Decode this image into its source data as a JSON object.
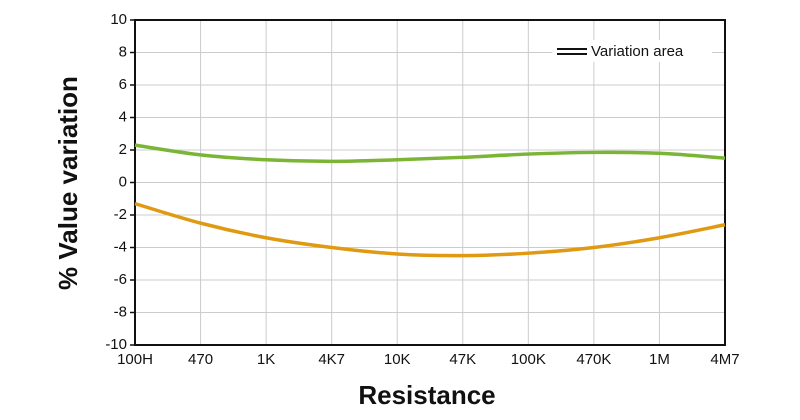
{
  "chart_data": {
    "type": "line",
    "x_label": "Resistance",
    "y_label": "% Value variation",
    "legend": "Variation area",
    "categories": [
      "100H",
      "470",
      "1K",
      "4K7",
      "10K",
      "47K",
      "100K",
      "470K",
      "1M",
      "4M7"
    ],
    "series": [
      {
        "color": "#7ab535",
        "values": [
          2.3,
          1.7,
          1.4,
          1.3,
          1.4,
          1.55,
          1.75,
          1.85,
          1.8,
          1.5
        ]
      },
      {
        "color": "#e09a12",
        "values": [
          -1.3,
          -2.5,
          -3.4,
          -4.0,
          -4.4,
          -4.5,
          -4.35,
          -4.0,
          -3.4,
          -2.6
        ]
      }
    ],
    "ylim": [
      -10,
      10
    ],
    "yticks": [
      -10,
      -8,
      -6,
      -4,
      -2,
      0,
      2,
      4,
      6,
      8,
      10
    ],
    "grid": true
  }
}
